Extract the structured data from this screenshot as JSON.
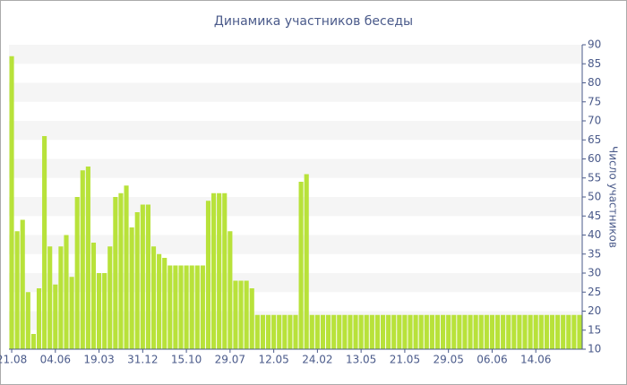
{
  "chart_data": {
    "type": "bar",
    "title": "Динамика участников беседы",
    "y_label": "Число участников",
    "categories": [
      "21.08",
      null,
      null,
      null,
      null,
      null,
      null,
      null,
      "04.06",
      null,
      null,
      null,
      null,
      null,
      null,
      null,
      "19.03",
      null,
      null,
      null,
      null,
      null,
      null,
      null,
      "31.12",
      null,
      null,
      null,
      null,
      null,
      null,
      null,
      "15.10",
      null,
      null,
      null,
      null,
      null,
      null,
      null,
      "29.07",
      null,
      null,
      null,
      null,
      null,
      null,
      null,
      "12.05",
      null,
      null,
      null,
      null,
      null,
      null,
      null,
      "24.02",
      null,
      null,
      null,
      null,
      null,
      null,
      null,
      "13.05",
      null,
      null,
      null,
      null,
      null,
      null,
      null,
      "21.05",
      null,
      null,
      null,
      null,
      null,
      null,
      null,
      "29.05",
      null,
      null,
      null,
      null,
      null,
      null,
      null,
      "06.06",
      null,
      null,
      null,
      null,
      null,
      null,
      null,
      "14.06",
      null,
      null,
      null,
      null,
      null,
      null,
      null,
      null
    ],
    "values": [
      87,
      41,
      44,
      25,
      14,
      26,
      66,
      37,
      27,
      37,
      40,
      29,
      50,
      57,
      58,
      38,
      30,
      30,
      37,
      50,
      51,
      53,
      42,
      46,
      48,
      48,
      37,
      35,
      34,
      32,
      32,
      32,
      32,
      32,
      32,
      32,
      49,
      51,
      51,
      51,
      41,
      28,
      28,
      28,
      26,
      19,
      19,
      19,
      19,
      19,
      19,
      19,
      19,
      54,
      56,
      19,
      19,
      19,
      19,
      19,
      19,
      19,
      19,
      19,
      19,
      19,
      19,
      19,
      19,
      19,
      19,
      19,
      19,
      19,
      19,
      19,
      19,
      19,
      19,
      19,
      19,
      19,
      19,
      19,
      19,
      19,
      19,
      19,
      19,
      19,
      19,
      19,
      19,
      19,
      19,
      19,
      19,
      19,
      19,
      19,
      19,
      19,
      19,
      19,
      19
    ],
    "color": "#b8e23a",
    "ylim": [
      10,
      90
    ],
    "yticks": [
      10,
      15,
      20,
      25,
      30,
      35,
      40,
      45,
      50,
      55,
      60,
      65,
      70,
      75,
      80,
      85,
      90
    ],
    "grid": true
  }
}
